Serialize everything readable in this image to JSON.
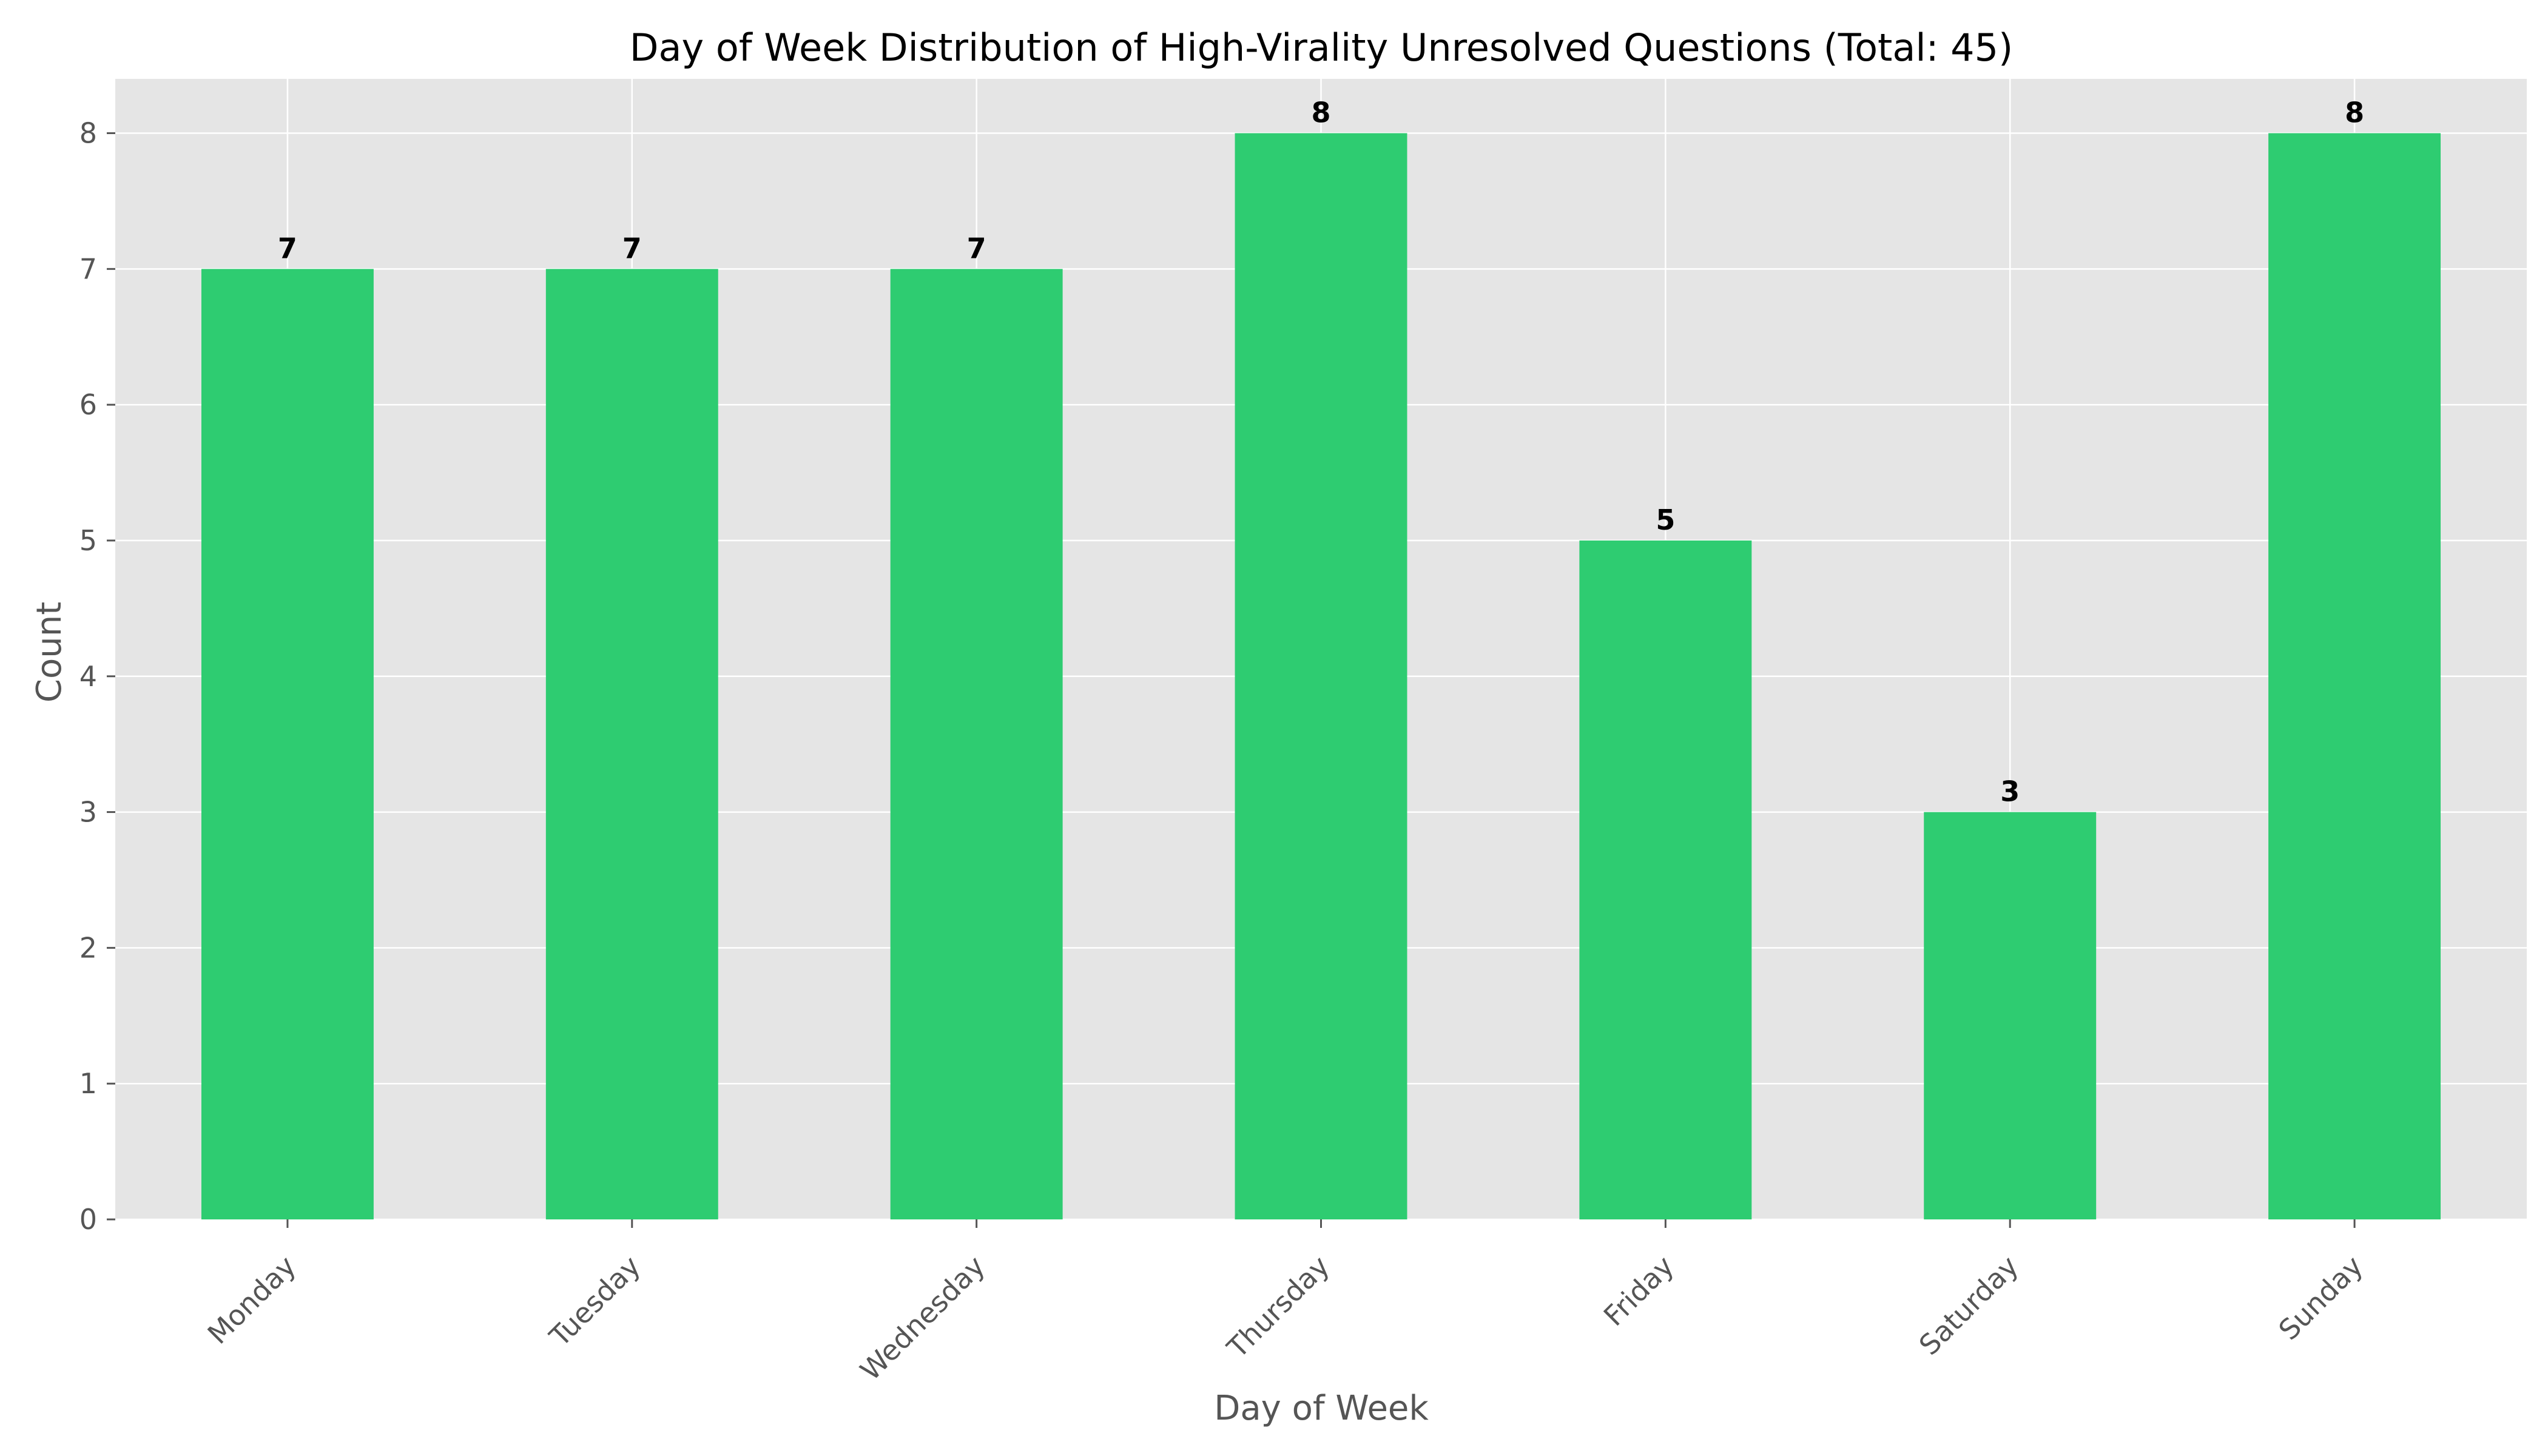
{
  "chart_data": {
    "type": "bar",
    "title": "Day of Week Distribution of High-Virality Unresolved Questions (Total: 45)",
    "xlabel": "Day of Week",
    "ylabel": "Count",
    "categories": [
      "Monday",
      "Tuesday",
      "Wednesday",
      "Thursday",
      "Friday",
      "Saturday",
      "Sunday"
    ],
    "values": [
      7,
      7,
      7,
      8,
      5,
      3,
      8
    ],
    "value_labels": [
      "7",
      "7",
      "7",
      "8",
      "5",
      "3",
      "8"
    ],
    "yticks": [
      "0",
      "1",
      "2",
      "3",
      "4",
      "5",
      "6",
      "7",
      "8"
    ],
    "ylim": [
      0,
      8.4
    ],
    "grid": true,
    "legend": "none",
    "bar_color": "#2ecc71",
    "plot_background": "#e5e5e5",
    "grid_color": "#ffffff"
  }
}
